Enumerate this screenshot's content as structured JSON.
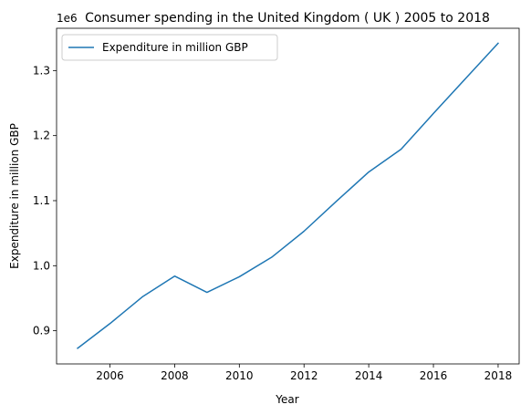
{
  "chart_data": {
    "type": "line",
    "title": "Consumer spending in the United Kingdom ( UK ) 2005 to 2018",
    "xlabel": "Year",
    "ylabel": "Expenditure in million GBP",
    "offset_label": "1e6",
    "legend": {
      "position": "top-left",
      "entries": [
        "Expenditure in million GBP"
      ]
    },
    "grid": false,
    "xlim": [
      2004.35,
      2018.65
    ],
    "ylim": [
      0.849,
      1.365
    ],
    "xticks": [
      2006,
      2008,
      2010,
      2012,
      2014,
      2016,
      2018
    ],
    "xtick_labels": [
      "2006",
      "2008",
      "2010",
      "2012",
      "2014",
      "2016",
      "2018"
    ],
    "yticks": [
      0.9,
      1.0,
      1.1,
      1.2,
      1.3
    ],
    "ytick_labels": [
      "0.9",
      "1.0",
      "1.1",
      "1.2",
      "1.3"
    ],
    "series": [
      {
        "name": "Expenditure in million GBP",
        "color": "#1f77b4",
        "x": [
          2005,
          2006,
          2007,
          2008,
          2009,
          2010,
          2011,
          2012,
          2013,
          2014,
          2015,
          2016,
          2017,
          2018
        ],
        "y": [
          0.873,
          0.911,
          0.952,
          0.984,
          0.959,
          0.983,
          1.013,
          1.053,
          1.099,
          1.144,
          1.179,
          1.234,
          1.288,
          1.342
        ]
      }
    ]
  }
}
